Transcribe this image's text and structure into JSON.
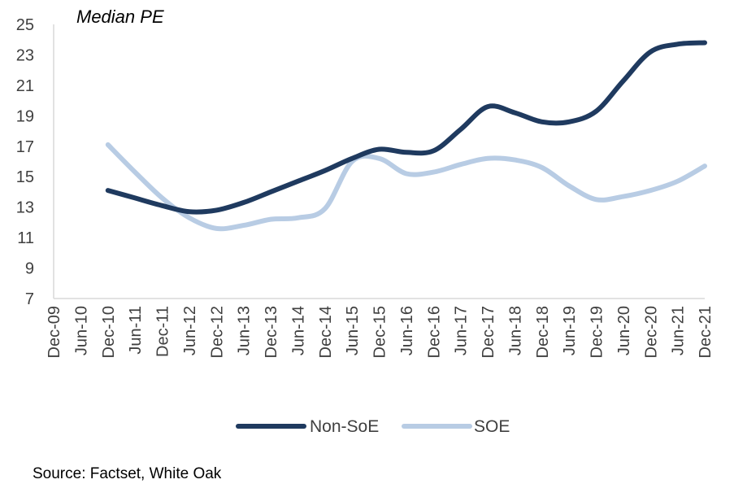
{
  "chart_data": {
    "type": "line",
    "title": "Median PE",
    "xlabel": "",
    "ylabel": "",
    "ylim": [
      7,
      25
    ],
    "yticks": [
      7,
      9,
      11,
      13,
      15,
      17,
      19,
      21,
      23,
      25
    ],
    "categories": [
      "Dec-09",
      "Jun-10",
      "Dec-10",
      "Jun-11",
      "Dec-11",
      "Jun-12",
      "Dec-12",
      "Jun-13",
      "Dec-13",
      "Jun-14",
      "Dec-14",
      "Jun-15",
      "Dec-15",
      "Jun-16",
      "Dec-16",
      "Jun-17",
      "Dec-17",
      "Jun-18",
      "Dec-18",
      "Jun-19",
      "Dec-19",
      "Jun-20",
      "Dec-20",
      "Jun-21",
      "Dec-21"
    ],
    "grid": false,
    "legend_position": "bottom",
    "series": [
      {
        "name": "Non-SoE",
        "color": "#1f3a5f",
        "points": [
          {
            "x": "Dec-10",
            "y": 14.1
          },
          {
            "x": "Jun-11",
            "y": 13.6
          },
          {
            "x": "Dec-11",
            "y": 13.1
          },
          {
            "x": "Jun-12",
            "y": 12.7
          },
          {
            "x": "Dec-12",
            "y": 12.8
          },
          {
            "x": "Jun-13",
            "y": 13.3
          },
          {
            "x": "Dec-13",
            "y": 14.0
          },
          {
            "x": "Jun-14",
            "y": 14.7
          },
          {
            "x": "Dec-14",
            "y": 15.4
          },
          {
            "x": "Jun-15",
            "y": 16.2
          },
          {
            "x": "Dec-15",
            "y": 16.8
          },
          {
            "x": "Jun-16",
            "y": 16.6
          },
          {
            "x": "Dec-16",
            "y": 16.7
          },
          {
            "x": "Jun-17",
            "y": 18.1
          },
          {
            "x": "Dec-17",
            "y": 19.6
          },
          {
            "x": "Jun-18",
            "y": 19.2
          },
          {
            "x": "Dec-18",
            "y": 18.6
          },
          {
            "x": "Jun-19",
            "y": 18.6
          },
          {
            "x": "Dec-19",
            "y": 19.3
          },
          {
            "x": "Jun-20",
            "y": 21.3
          },
          {
            "x": "Dec-20",
            "y": 23.2
          },
          {
            "x": "Jun-21",
            "y": 23.7
          },
          {
            "x": "Dec-21",
            "y": 23.8
          }
        ]
      },
      {
        "name": "SOE",
        "color": "#b8cce4",
        "points": [
          {
            "x": "Dec-10",
            "y": 17.1
          },
          {
            "x": "Jun-11",
            "y": 15.3
          },
          {
            "x": "Dec-11",
            "y": 13.6
          },
          {
            "x": "Jun-12",
            "y": 12.3
          },
          {
            "x": "Dec-12",
            "y": 11.6
          },
          {
            "x": "Jun-13",
            "y": 11.8
          },
          {
            "x": "Dec-13",
            "y": 12.2
          },
          {
            "x": "Jun-14",
            "y": 12.3
          },
          {
            "x": "Dec-14",
            "y": 12.9
          },
          {
            "x": "Jun-15",
            "y": 16.0
          },
          {
            "x": "Dec-15",
            "y": 16.2
          },
          {
            "x": "Jun-16",
            "y": 15.2
          },
          {
            "x": "Dec-16",
            "y": 15.3
          },
          {
            "x": "Jun-17",
            "y": 15.8
          },
          {
            "x": "Dec-17",
            "y": 16.2
          },
          {
            "x": "Jun-18",
            "y": 16.1
          },
          {
            "x": "Dec-18",
            "y": 15.6
          },
          {
            "x": "Jun-19",
            "y": 14.4
          },
          {
            "x": "Dec-19",
            "y": 13.5
          },
          {
            "x": "Jun-20",
            "y": 13.7
          },
          {
            "x": "Dec-20",
            "y": 14.1
          },
          {
            "x": "Jun-21",
            "y": 14.7
          },
          {
            "x": "Dec-21",
            "y": 15.7
          }
        ]
      }
    ]
  },
  "source_note": "Source: Factset, White Oak"
}
